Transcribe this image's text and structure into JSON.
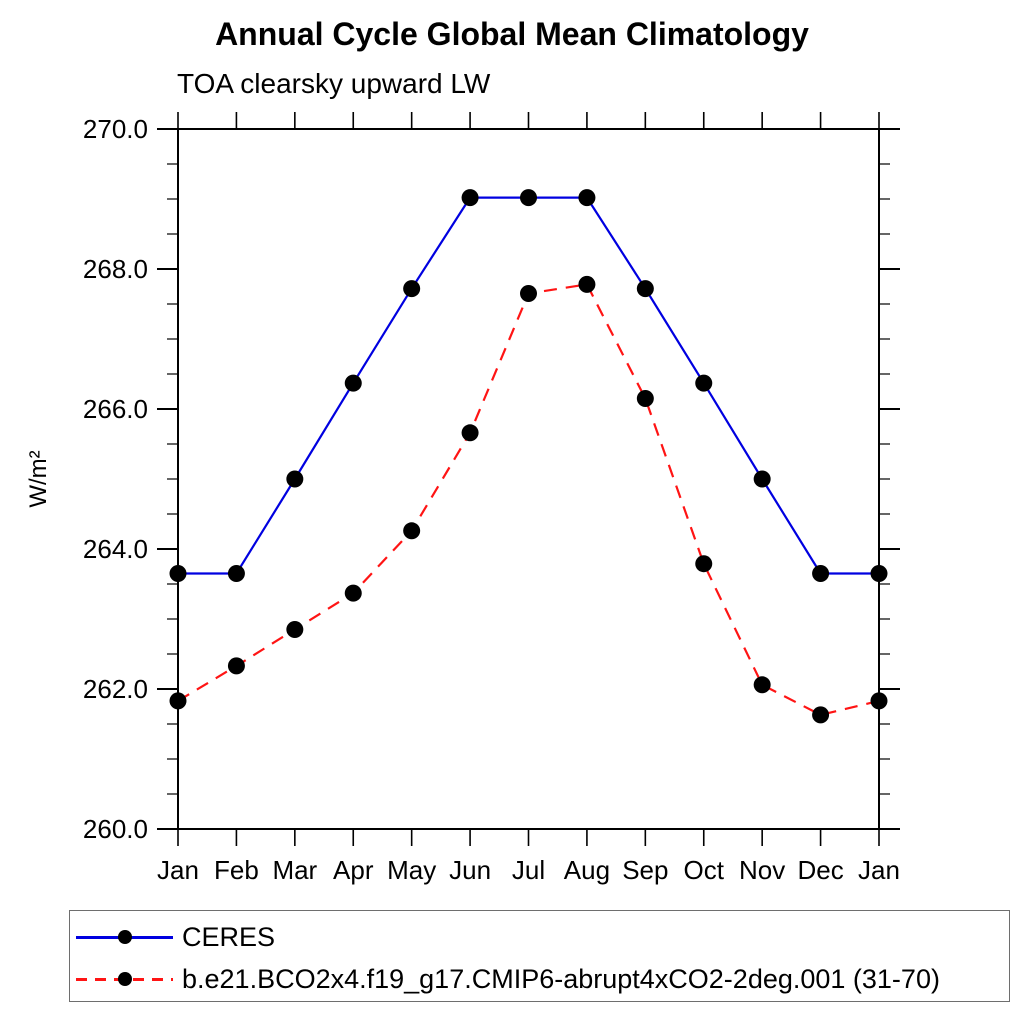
{
  "chart_data": {
    "type": "line",
    "title": "Annual Cycle Global Mean Climatology",
    "subtitle": "TOA clearsky upward LW",
    "ylabel": "W/m²",
    "ylim": [
      260.0,
      270.0
    ],
    "ytick_values": [
      260,
      262,
      264,
      266,
      268,
      270
    ],
    "ytick_labels": [
      "260.0",
      "262.0",
      "264.0",
      "266.0",
      "268.0",
      "270.0"
    ],
    "minor_tick_step": 0.5,
    "categories": [
      "Jan",
      "Feb",
      "Mar",
      "Apr",
      "May",
      "Jun",
      "Jul",
      "Aug",
      "Sep",
      "Oct",
      "Nov",
      "Dec",
      "Jan"
    ],
    "grid": false,
    "legend_position": "bottom-left-box",
    "axis_color": "#000000",
    "marker": "filled-circle",
    "marker_color": "#000000",
    "series": [
      {
        "name": "CERES",
        "color": "#0000e0",
        "style": "solid",
        "values": [
          263.65,
          263.65,
          265.0,
          266.37,
          267.72,
          269.02,
          269.02,
          269.02,
          267.72,
          266.37,
          265.0,
          263.65,
          263.65
        ]
      },
      {
        "name": "b.e21.BCO2x4.f19_g17.CMIP6-abrupt4xCO2-2deg.001 (31-70)",
        "color": "#ff1414",
        "style": "dashed",
        "values": [
          261.83,
          262.33,
          262.85,
          263.37,
          264.26,
          265.66,
          267.65,
          267.78,
          266.15,
          263.79,
          262.06,
          261.63,
          261.83
        ]
      }
    ]
  }
}
